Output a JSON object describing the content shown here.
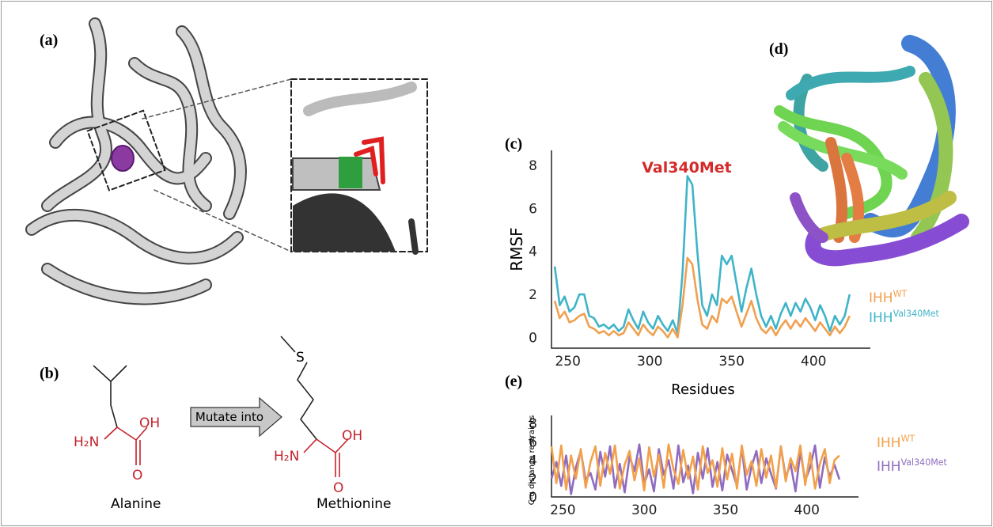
{
  "panel_labels": [
    "(a)",
    "(b)",
    "(c)",
    "(d)",
    "(e)"
  ],
  "molecules": {
    "arrow_label": "Mutate into",
    "left": {
      "name": "Alanine",
      "amine": "H₂N",
      "hydroxyl": "OH",
      "oxygen": "O"
    },
    "right": {
      "name": "Methionine",
      "sulfur": "S",
      "amine": "H₂N",
      "hydroxyl": "OH",
      "oxygen": "O"
    }
  },
  "chart_data": [
    {
      "type": "line",
      "annotation": "Val340Met",
      "y_label": "RMSF",
      "x_label": "Residues",
      "x": [
        242,
        245,
        248,
        251,
        254,
        257,
        260,
        263,
        266,
        269,
        272,
        275,
        278,
        281,
        284,
        287,
        290,
        293,
        296,
        299,
        302,
        305,
        308,
        311,
        314,
        317,
        320,
        323,
        326,
        329,
        332,
        335,
        338,
        341,
        344,
        347,
        350,
        353,
        356,
        359,
        362,
        365,
        368,
        371,
        374,
        377,
        380,
        383,
        386,
        389,
        392,
        395,
        398,
        401,
        404,
        407,
        410,
        413,
        416,
        419,
        422
      ],
      "xlim": [
        240,
        425
      ],
      "xticks": [
        250,
        300,
        350,
        400
      ],
      "ylim": [
        -0.5,
        8.7
      ],
      "yticks": [
        0,
        2,
        4,
        6,
        8
      ],
      "series": [
        {
          "name": "IHH",
          "superscript": "WT",
          "color": "#f0a050",
          "values": [
            1.7,
            0.9,
            1.2,
            0.7,
            0.8,
            1.0,
            1.1,
            0.5,
            0.4,
            0.2,
            0.3,
            0.1,
            0.3,
            0.1,
            0.2,
            0.7,
            0.4,
            0.1,
            0.6,
            0.3,
            0.1,
            0.5,
            0.3,
            0.0,
            0.4,
            0.0,
            1.5,
            3.7,
            3.4,
            1.8,
            0.6,
            0.4,
            1.0,
            0.7,
            1.8,
            1.6,
            1.9,
            1.2,
            0.5,
            1.1,
            1.7,
            0.9,
            0.4,
            0.2,
            0.5,
            0.1,
            0.5,
            0.8,
            0.4,
            0.8,
            0.5,
            0.9,
            0.6,
            0.3,
            0.7,
            0.4,
            0.1,
            0.5,
            0.2,
            0.5,
            1.0
          ]
        },
        {
          "name": "IHH",
          "superscript": "Val340Met",
          "color": "#3fb4c8",
          "values": [
            3.3,
            1.5,
            1.9,
            1.2,
            1.4,
            2.0,
            2.0,
            1.0,
            0.9,
            0.5,
            0.6,
            0.4,
            0.6,
            0.3,
            0.5,
            1.3,
            0.8,
            0.4,
            1.2,
            0.7,
            0.4,
            1.0,
            0.6,
            0.3,
            0.8,
            0.2,
            3.0,
            7.5,
            7.1,
            4.0,
            1.5,
            1.0,
            2.0,
            1.5,
            3.8,
            3.4,
            3.8,
            2.5,
            1.2,
            2.3,
            3.2,
            2.0,
            1.0,
            0.5,
            1.0,
            0.4,
            1.1,
            1.6,
            1.0,
            1.6,
            1.2,
            1.8,
            1.4,
            0.8,
            1.5,
            1.0,
            0.3,
            1.0,
            0.6,
            1.0,
            2.0
          ]
        }
      ]
    },
    {
      "type": "line",
      "y_label": "C-α distance restraints",
      "x": [
        243,
        246,
        249,
        252,
        255,
        258,
        261,
        264,
        267,
        270,
        273,
        276,
        279,
        282,
        285,
        288,
        291,
        294,
        297,
        300,
        303,
        306,
        309,
        312,
        315,
        318,
        321,
        324,
        327,
        330,
        333,
        336,
        339,
        342,
        345,
        348,
        351,
        354,
        357,
        360,
        363,
        366,
        369,
        372,
        375,
        378,
        381,
        384,
        387,
        390,
        393,
        396,
        399,
        402,
        405,
        408,
        411,
        414,
        417,
        420
      ],
      "xlim": [
        243,
        422
      ],
      "xticks": [
        250,
        300,
        350,
        400
      ],
      "ylim": [
        0,
        8
      ],
      "yticks": [
        0,
        2,
        4,
        6,
        8
      ],
      "series": [
        {
          "name": "IHH",
          "superscript": "WT",
          "color": "#f3a04a",
          "values": [
            5.5,
            1.5,
            5.6,
            0.8,
            4.5,
            2.0,
            5.2,
            1.0,
            3.8,
            5.5,
            1.2,
            4.8,
            2.5,
            5.6,
            0.9,
            3.5,
            5.0,
            1.8,
            4.2,
            0.7,
            5.4,
            2.2,
            4.6,
            1.0,
            5.7,
            3.0,
            1.4,
            5.1,
            2.0,
            4.4,
            0.8,
            5.5,
            2.6,
            4.0,
            1.1,
            5.3,
            1.9,
            4.7,
            0.9,
            5.6,
            2.4,
            3.9,
            1.2,
            5.2,
            2.1,
            4.5,
            1.0,
            5.5,
            1.7,
            4.2,
            2.8,
            5.6,
            1.3,
            4.8,
            0.9,
            3.6,
            5.2,
            1.5,
            4.0,
            4.5
          ]
        },
        {
          "name": "IHH",
          "superscript": "Val340Met",
          "color": "#8f6cc0",
          "values": [
            2.0,
            3.8,
            1.2,
            4.5,
            0.3,
            3.2,
            5.0,
            1.8,
            2.6,
            0.8,
            4.9,
            2.2,
            5.5,
            1.0,
            3.6,
            0.5,
            4.4,
            2.8,
            5.7,
            1.4,
            3.0,
            0.6,
            5.2,
            2.4,
            4.0,
            0.9,
            5.6,
            1.6,
            3.4,
            0.4,
            4.8,
            2.0,
            5.3,
            1.1,
            3.8,
            0.7,
            4.6,
            2.9,
            1.2,
            5.4,
            0.8,
            3.3,
            5.0,
            1.5,
            4.2,
            2.5,
            0.9,
            5.5,
            2.1,
            3.6,
            0.6,
            4.9,
            1.8,
            3.2,
            5.6,
            1.0,
            4.3,
            2.2,
            3.5,
            1.9
          ]
        }
      ]
    }
  ]
}
